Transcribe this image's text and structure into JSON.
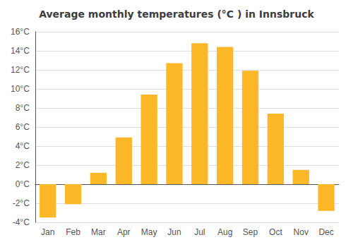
{
  "chart_data": {
    "type": "bar",
    "title": "Average monthly temperatures (°C ) in Innsbruck",
    "categories": [
      "Jan",
      "Feb",
      "Mar",
      "Apr",
      "May",
      "Jun",
      "Jul",
      "Aug",
      "Sep",
      "Oct",
      "Nov",
      "Dec"
    ],
    "values": [
      -3.5,
      -2.1,
      1.2,
      4.9,
      9.4,
      12.7,
      14.8,
      14.4,
      11.9,
      7.4,
      1.5,
      -2.8
    ],
    "color": "#FDB827",
    "ylim": [
      -4,
      16
    ],
    "yticks": [
      {
        "value": -4,
        "label": "-4°C"
      },
      {
        "value": -2,
        "label": "-2°C"
      },
      {
        "value": 0,
        "label": "0°C"
      },
      {
        "value": 2,
        "label": "2°C"
      },
      {
        "value": 4,
        "label": "4°C"
      },
      {
        "value": 6,
        "label": "6°C"
      },
      {
        "value": 8,
        "label": "8°C"
      },
      {
        "value": 10,
        "label": "10°C"
      },
      {
        "value": 12,
        "label": "12°C"
      },
      {
        "value": 14,
        "label": "14°C"
      },
      {
        "value": 16,
        "label": "16°C"
      }
    ],
    "grid": true
  }
}
